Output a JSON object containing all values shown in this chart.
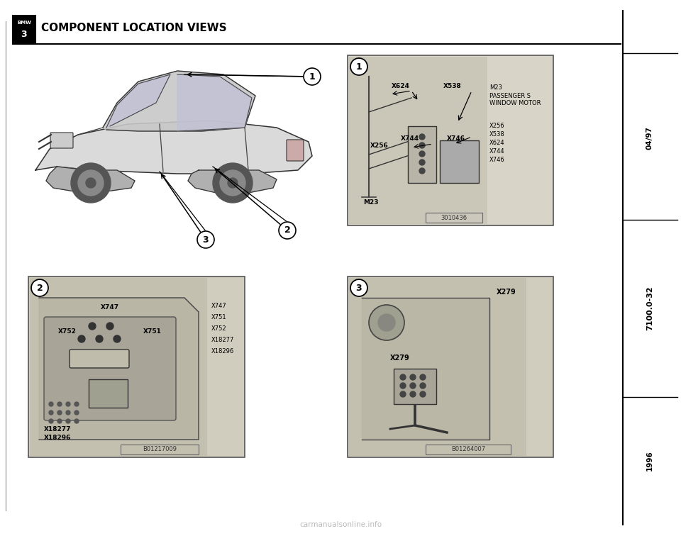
{
  "title": "COMPONENT LOCATION VIEWS",
  "background_color": "#ffffff",
  "bmw_text_top": "BMW",
  "bmw_text_bot": "3",
  "right_sidebar_texts": [
    "04/97",
    "7100.0-32",
    "1996"
  ],
  "watermark": "carmanualsonline.info",
  "diagram1_components": [
    "X624",
    "X538",
    "X744",
    "X256",
    "X746",
    "M23"
  ],
  "diagram1_legend": [
    "M23",
    "PASSENGER S",
    "WINDOW MOTOR",
    "X256",
    "X538",
    "X624",
    "X744",
    "X746"
  ],
  "diagram1_ref": "3010436",
  "diagram2_components": [
    "X747",
    "X751",
    "X752",
    "X18277",
    "X18296"
  ],
  "diagram2_legend": [
    "X747",
    "X751",
    "X752",
    "X18277",
    "X18296"
  ],
  "diagram2_ref": "B01217009",
  "diagram3_component": "X279",
  "diagram3_ref": "B01264007"
}
